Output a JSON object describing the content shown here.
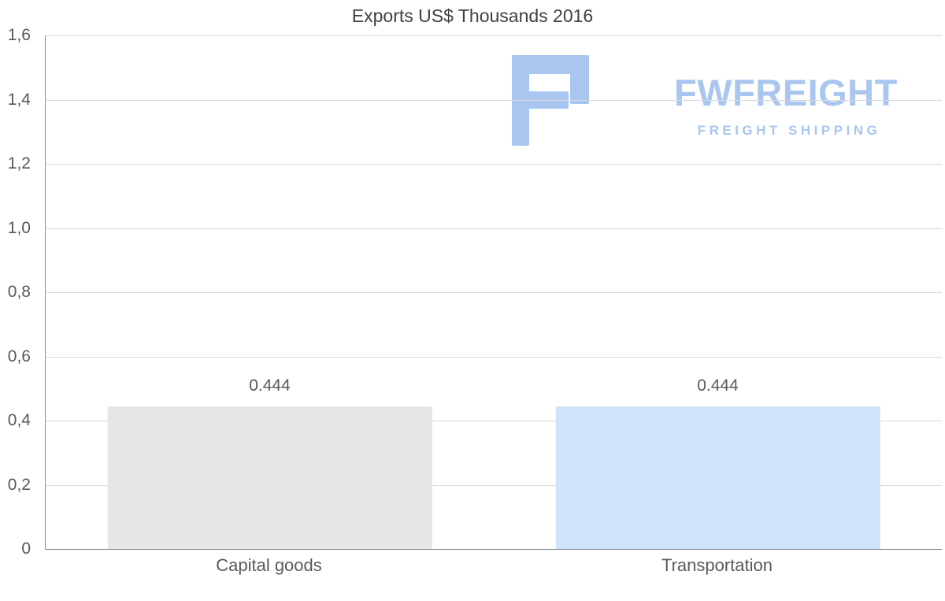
{
  "chart_data": {
    "type": "bar",
    "title": "Exports US$ Thousands 2016",
    "categories": [
      "Capital goods",
      "Transportation"
    ],
    "values": [
      0.444,
      0.444
    ],
    "value_labels": [
      "0.444",
      "0.444"
    ],
    "bar_colors": [
      "#e6e6e6",
      "#cde4f9"
    ],
    "xlabel": "",
    "ylabel": "",
    "ylim": [
      0,
      1.6
    ],
    "yticks": [
      0,
      0.2,
      0.4,
      0.6,
      0.8,
      1.0,
      1.2,
      1.4,
      1.6
    ],
    "ytick_labels": [
      "0",
      "0,2",
      "0,4",
      "0,6",
      "0,8",
      "1,0",
      "1,2",
      "1,4",
      "1,6"
    ],
    "grid": true,
    "legend_position": "none",
    "gridline_color": "#d9d9d9",
    "axis_color": "#8c8c8c",
    "label_color": "#595959",
    "title_color": "#404040"
  },
  "watermark": {
    "brand": "FWFREIGHT",
    "tagline": "FREIGHT SHIPPING",
    "color": "#a9c6f0"
  }
}
